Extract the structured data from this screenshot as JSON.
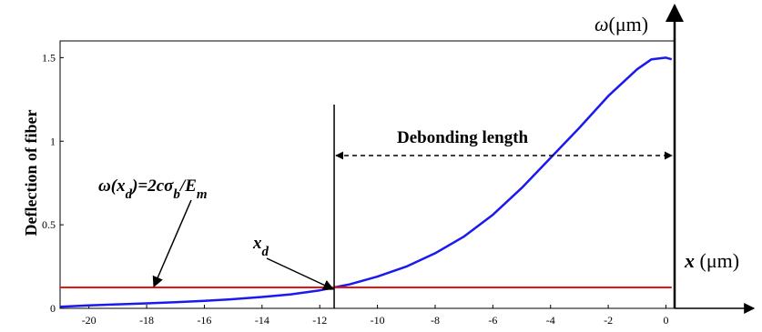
{
  "chart_data": {
    "type": "line",
    "title": "",
    "xlabel": "x (μm)",
    "ylabel": "Deflection of fiber",
    "y_axis_title": "ω(μm)",
    "xlim": [
      -21,
      0.3
    ],
    "ylim": [
      0,
      1.6
    ],
    "x_ticks": [
      -20,
      -18,
      -16,
      -14,
      -12,
      -10,
      -8,
      -6,
      -4,
      -2,
      0
    ],
    "y_ticks": [
      0,
      0.5,
      1,
      1.5
    ],
    "y_tick_labels": [
      "0",
      "0.5",
      "1",
      "1.5"
    ],
    "grid": false,
    "series": [
      {
        "color": "#1a1aee",
        "x": [
          -21,
          -20,
          -19,
          -18,
          -17,
          -16,
          -15,
          -14,
          -13,
          -12,
          -11.5,
          -11,
          -10,
          -9,
          -8,
          -7,
          -6,
          -5,
          -4,
          -3,
          -2,
          -1,
          -0.5,
          0,
          0.2
        ],
        "y": [
          0.01,
          0.018,
          0.024,
          0.03,
          0.037,
          0.045,
          0.055,
          0.068,
          0.084,
          0.108,
          0.125,
          0.142,
          0.19,
          0.25,
          0.33,
          0.43,
          0.56,
          0.72,
          0.9,
          1.08,
          1.27,
          1.43,
          1.49,
          1.5,
          1.49
        ]
      },
      {
        "color": "#ee1111",
        "x": [
          -21,
          0.2
        ],
        "y": [
          0.125,
          0.125
        ]
      }
    ],
    "annotations": {
      "debonding_label": "Debonding length",
      "condition_label": "ω(x_d)=2cσ_b/E_m",
      "xd_label": "x_d",
      "xd_value": -11.5
    }
  }
}
